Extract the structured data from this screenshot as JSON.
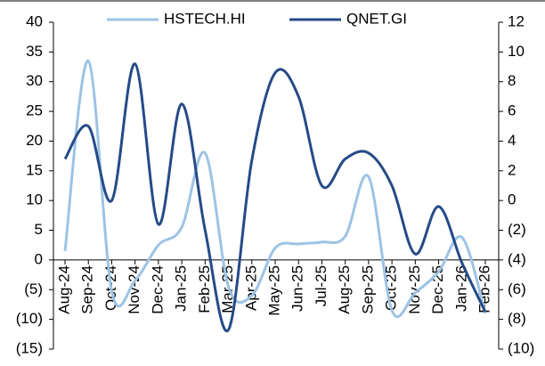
{
  "chart_data": {
    "type": "line",
    "categories": [
      "Aug-24",
      "Sep-24",
      "Oct-24",
      "Nov-24",
      "Dec-24",
      "Jan-25",
      "Feb-25",
      "Mar-25",
      "Apr-25",
      "May-25",
      "Jun-25",
      "Jul-25",
      "Aug-25",
      "Sep-25",
      "Oct-25",
      "Nov-25",
      "Dec-25",
      "Jan-26",
      "Feb-26"
    ],
    "series": [
      {
        "name": "HSTECH.HI",
        "color": "#9dc3e6",
        "axis": "y",
        "values": [
          1.5,
          33.5,
          -5.2,
          -3.5,
          2.5,
          5.5,
          18,
          -4.5,
          -6,
          2,
          2.7,
          3,
          4,
          14,
          -8.5,
          -5.5,
          -2,
          3.8,
          -9
        ]
      },
      {
        "name": "QNET.GI",
        "color": "#254a87",
        "axis": "y2",
        "values": [
          2.8,
          5,
          0,
          9.2,
          -1.6,
          6.5,
          -2,
          -8.7,
          2.7,
          8.6,
          7,
          1,
          2.8,
          3.2,
          1,
          -3.6,
          -0.4,
          -4.2,
          -7.5
        ]
      }
    ],
    "ylim": [
      -15,
      40
    ],
    "yticks": [
      {
        "value": -15,
        "label": "(15)"
      },
      {
        "value": -10,
        "label": "(10)"
      },
      {
        "value": -5,
        "label": "(5)"
      },
      0,
      5,
      10,
      15,
      20,
      25,
      30,
      35,
      40
    ],
    "y2lim": [
      -10,
      12
    ],
    "y2ticks": [
      {
        "value": -10,
        "label": "(10)"
      },
      {
        "value": -8,
        "label": "(8)"
      },
      {
        "value": -6,
        "label": "(6)"
      },
      {
        "value": -4,
        "label": "(4)"
      },
      {
        "value": -2,
        "label": "(2)"
      },
      0,
      2,
      4,
      6,
      8,
      10,
      12
    ],
    "negative_tick_color": "#e00000",
    "legend": "top"
  }
}
